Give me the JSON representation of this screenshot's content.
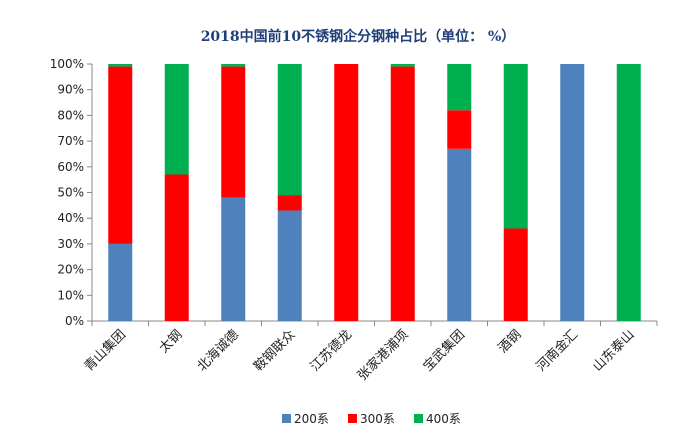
{
  "chart_data": {
    "type": "bar",
    "stacked": true,
    "title": "2018中国前10不锈钢企分钢种占比（单位： %）",
    "xlabel": "",
    "ylabel": "",
    "categories": [
      "青山集团",
      "太钢",
      "北海诚德",
      "鞍钢联众",
      "江苏德龙",
      "张家港浦项",
      "宝武集团",
      "酒钢",
      "河南金汇",
      "山东泰山"
    ],
    "ylim": [
      0,
      100
    ],
    "yticks": [
      "0%",
      "10%",
      "20%",
      "30%",
      "40%",
      "50%",
      "60%",
      "70%",
      "80%",
      "90%",
      "100%"
    ],
    "yticks_values": [
      0,
      10,
      20,
      30,
      40,
      50,
      60,
      70,
      80,
      90,
      100
    ],
    "grid": false,
    "legend_position": "bottom",
    "series": [
      {
        "name": "200系",
        "color": "#4f81bd",
        "values": [
          30,
          0,
          48,
          43,
          0,
          0,
          67,
          0,
          100,
          0
        ]
      },
      {
        "name": "300系",
        "color": "#ff0000",
        "values": [
          69,
          57,
          51,
          6,
          100,
          99,
          15,
          36,
          0,
          0
        ]
      },
      {
        "name": "400系",
        "color": "#00b050",
        "values": [
          1,
          43,
          1,
          51,
          0,
          1,
          18,
          64,
          0,
          100
        ]
      }
    ]
  }
}
